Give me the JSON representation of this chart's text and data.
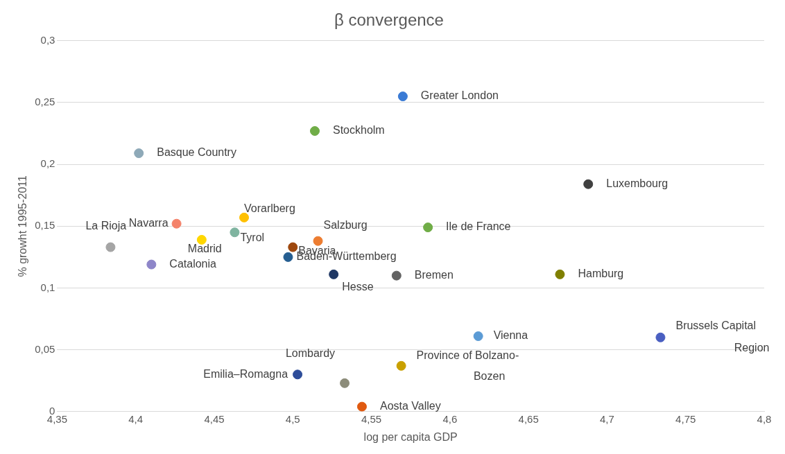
{
  "chart_data": {
    "type": "scatter",
    "title": "β convergence",
    "xlabel": "log per capita GDP",
    "ylabel": "% growht 1995-2011",
    "x": [
      4.57,
      4.514,
      4.402,
      4.688,
      4.384,
      4.426,
      4.469,
      4.463,
      4.442,
      4.41,
      4.516,
      4.5,
      4.497,
      4.526,
      4.566,
      4.586,
      4.67,
      4.618,
      4.734,
      4.569,
      4.533,
      4.503,
      4.544
    ],
    "values": [
      0.255,
      0.227,
      0.209,
      0.184,
      0.133,
      0.152,
      0.157,
      0.145,
      0.139,
      0.119,
      0.138,
      0.133,
      0.125,
      0.111,
      0.11,
      0.149,
      0.111,
      0.061,
      0.06,
      0.037,
      0.023,
      0.03,
      0.004
    ],
    "colors": [
      "#3a7bd5",
      "#70ad47",
      "#8ea9b8",
      "#404040",
      "#a5a5a5",
      "#f4826a",
      "#ffc000",
      "#7fb4a0",
      "#ffd700",
      "#8e86c9",
      "#ed7d31",
      "#9e480e",
      "#255e91",
      "#1f3864",
      "#636363",
      "#70ad47",
      "#7f7f00",
      "#5b9bd5",
      "#4a5fc1",
      "#c9a000",
      "#8c8c7a",
      "#2e4d9a",
      "#e05a10"
    ],
    "annotations": [
      {
        "text": "Greater London",
        "x": 4.57,
        "y": 0.255
      },
      {
        "text": "Stockholm",
        "x": 4.514,
        "y": 0.227
      },
      {
        "text": "Basque Country",
        "x": 4.402,
        "y": 0.209
      },
      {
        "text": "Luxembourg",
        "x": 4.688,
        "y": 0.184
      },
      {
        "text": "La Rioja",
        "x": 4.384,
        "y": 0.133
      },
      {
        "text": "Navarra",
        "x": 4.426,
        "y": 0.152
      },
      {
        "text": "Vorarlberg",
        "x": 4.469,
        "y": 0.157
      },
      {
        "text": "Tyrol",
        "x": 4.463,
        "y": 0.145
      },
      {
        "text": "Madrid",
        "x": 4.442,
        "y": 0.139
      },
      {
        "text": "Catalonia",
        "x": 4.41,
        "y": 0.119
      },
      {
        "text": "Salzburg",
        "x": 4.516,
        "y": 0.138
      },
      {
        "text": "Bavaria",
        "x": 4.5,
        "y": 0.133
      },
      {
        "text": "Baden-Württemberg",
        "x": 4.497,
        "y": 0.125
      },
      {
        "text": "Hesse",
        "x": 4.526,
        "y": 0.111
      },
      {
        "text": "Bremen",
        "x": 4.566,
        "y": 0.11
      },
      {
        "text": "Ile de France",
        "x": 4.586,
        "y": 0.149
      },
      {
        "text": "Hamburg",
        "x": 4.67,
        "y": 0.111
      },
      {
        "text": "Vienna",
        "x": 4.618,
        "y": 0.061
      },
      {
        "text": "Brussels Capital Region",
        "x": 4.734,
        "y": 0.06
      },
      {
        "text": "Province of Bolzano-Bozen",
        "x": 4.569,
        "y": 0.037
      },
      {
        "text": "Lombardy",
        "x": 4.533,
        "y": 0.023
      },
      {
        "text": "Emilia–Romagna",
        "x": 4.503,
        "y": 0.03
      },
      {
        "text": "Aosta Valley",
        "x": 4.544,
        "y": 0.004
      }
    ],
    "xlim": [
      4.35,
      4.8
    ],
    "xticks": [
      {
        "value": 4.35,
        "label": "4,35"
      },
      {
        "value": 4.4,
        "label": "4,4"
      },
      {
        "value": 4.45,
        "label": "4,45"
      },
      {
        "value": 4.5,
        "label": "4,5"
      },
      {
        "value": 4.55,
        "label": "4,55"
      },
      {
        "value": 4.6,
        "label": "4,6"
      },
      {
        "value": 4.65,
        "label": "4,65"
      },
      {
        "value": 4.7,
        "label": "4,7"
      },
      {
        "value": 4.75,
        "label": "4,75"
      },
      {
        "value": 4.8,
        "label": "4,8"
      }
    ],
    "ylim": [
      0,
      0.3
    ],
    "yticks": [
      0,
      {
        "value": 0.05,
        "label": "0,05"
      },
      {
        "value": 0.1,
        "label": "0,1"
      },
      {
        "value": 0.15,
        "label": "0,15"
      },
      {
        "value": 0.2,
        "label": "0,2"
      },
      {
        "value": 0.25,
        "label": "0,25"
      },
      {
        "value": 0.3,
        "label": "0,3"
      }
    ],
    "grid": "y",
    "marker": "circle",
    "legend": false
  }
}
